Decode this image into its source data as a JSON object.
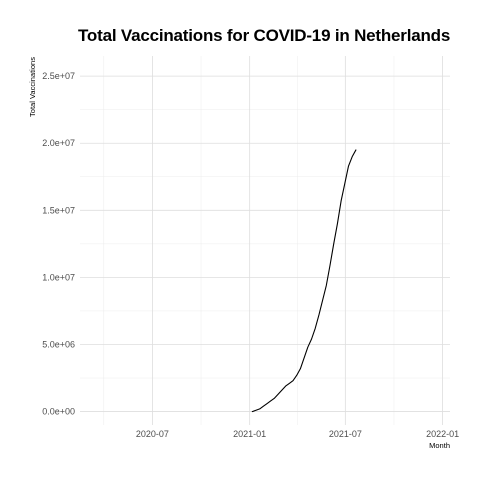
{
  "chart_data": {
    "type": "line",
    "title": "Total Vaccinations for COVID-19 in Netherlands",
    "xlabel": "Month",
    "ylabel": "Total Vaccinations",
    "x_type": "date",
    "xlim": [
      "2020-02-15",
      "2022-01-15"
    ],
    "ylim": [
      -1000000,
      26500000
    ],
    "x_ticks": [
      {
        "value": "2020-07-01",
        "label": "2020-07"
      },
      {
        "value": "2021-01-01",
        "label": "2021-01"
      },
      {
        "value": "2021-07-01",
        "label": "2021-07"
      },
      {
        "value": "2022-01-01",
        "label": "2022-01"
      }
    ],
    "y_ticks": [
      {
        "value": 0,
        "label": "0.0e+00"
      },
      {
        "value": 5000000,
        "label": "5.0e+06"
      },
      {
        "value": 10000000,
        "label": "1.0e+07"
      },
      {
        "value": 15000000,
        "label": "1.5e+07"
      },
      {
        "value": 20000000,
        "label": "2.0e+07"
      },
      {
        "value": 25000000,
        "label": "2.5e+07"
      }
    ],
    "grid": true,
    "line_color": "#000000",
    "series": [
      {
        "x": [
          "2021-01-06",
          "2021-01-13",
          "2021-01-20",
          "2021-01-27",
          "2021-02-03",
          "2021-02-10",
          "2021-02-17",
          "2021-02-24",
          "2021-03-03",
          "2021-03-10",
          "2021-03-17",
          "2021-03-24",
          "2021-03-31",
          "2021-04-07",
          "2021-04-14",
          "2021-04-21",
          "2021-04-28",
          "2021-05-05",
          "2021-05-12",
          "2021-05-19",
          "2021-05-26",
          "2021-06-02",
          "2021-06-09",
          "2021-06-16",
          "2021-06-23",
          "2021-06-30",
          "2021-07-07",
          "2021-07-14",
          "2021-07-21"
        ],
        "y": [
          0,
          100000,
          200000,
          400000,
          600000,
          800000,
          1000000,
          1300000,
          1600000,
          1900000,
          2100000,
          2300000,
          2700000,
          3200000,
          4000000,
          4800000,
          5400000,
          6200000,
          7200000,
          8300000,
          9400000,
          10900000,
          12500000,
          14000000,
          15700000,
          17000000,
          18300000,
          19000000,
          19500000
        ]
      }
    ]
  }
}
